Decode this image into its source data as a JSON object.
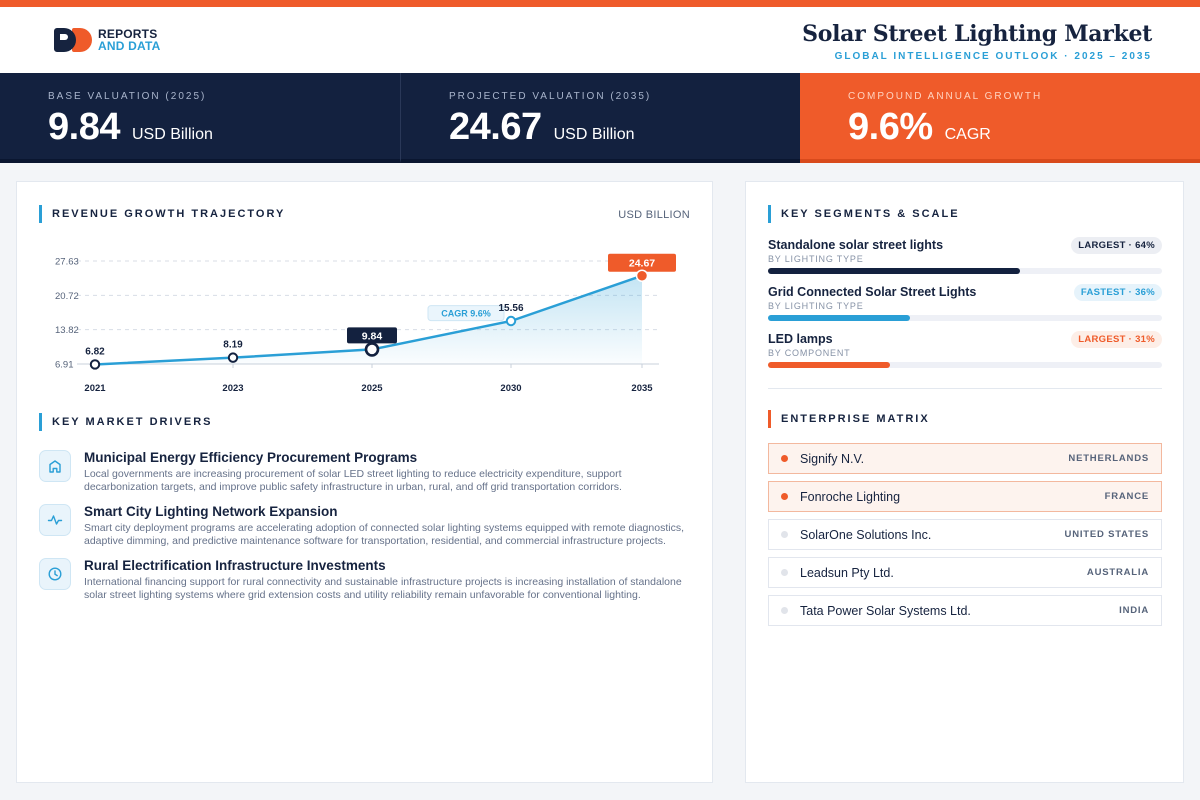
{
  "brand": {
    "line1": "REPORTS",
    "line2": "AND DATA"
  },
  "header": {
    "title": "Solar Street Lighting Market",
    "subtitle": "GLOBAL INTELLIGENCE OUTLOOK  ·  2025 – 2035"
  },
  "kpis": [
    {
      "label": "BASE VALUATION (2025)",
      "value": "9.84",
      "unit": "USD Billion"
    },
    {
      "label": "PROJECTED VALUATION (2035)",
      "value": "24.67",
      "unit": "USD Billion"
    },
    {
      "label": "COMPOUND ANNUAL GROWTH",
      "value": "9.6%",
      "unit": "CAGR"
    }
  ],
  "colors": {
    "navy": "#13213f",
    "orange": "#ef5b2a",
    "blue": "#2a9fd6"
  },
  "trajectory": {
    "title": "REVENUE GROWTH TRAJECTORY",
    "unit_label": "USD BILLION"
  },
  "chart_data": {
    "type": "area",
    "title": "REVENUE GROWTH TRAJECTORY",
    "ylabel": "USD BILLION",
    "categories": [
      "2021",
      "2023",
      "2025",
      "2030",
      "2035"
    ],
    "values": [
      6.82,
      8.19,
      9.84,
      15.56,
      24.67
    ],
    "value_labels": [
      "6.82",
      "8.19",
      "9.84",
      "15.56",
      "24.67"
    ],
    "y_ticks": [
      "27.63",
      "20.72",
      "13.82",
      "6.91"
    ],
    "ylim": [
      6.91,
      27.63
    ],
    "annotation": "CAGR 9.6%",
    "grid": true,
    "highlight": {
      "base_index": 2,
      "target_index": 4
    }
  },
  "drivers": {
    "title": "KEY MARKET DRIVERS",
    "items": [
      {
        "icon": "building-icon",
        "title": "Municipal Energy Efficiency Procurement Programs",
        "desc": "Local governments are increasing procurement of solar LED street lighting to reduce electricity expenditure, support decarbonization targets, and improve public safety infrastructure in urban, rural, and off grid transportation corridors."
      },
      {
        "icon": "pulse-icon",
        "title": "Smart City Lighting Network Expansion",
        "desc": "Smart city deployment programs are accelerating adoption of connected solar lighting systems equipped with remote diagnostics, adaptive dimming, and predictive maintenance software for transportation, residential, and commercial infrastructure projects."
      },
      {
        "icon": "clock-icon",
        "title": "Rural Electrification Infrastructure Investments",
        "desc": "International financing support for rural connectivity and sustainable infrastructure projects is increasing installation of standalone solar street lighting systems where grid extension costs and utility reliability remain unfavorable for conventional lighting."
      }
    ]
  },
  "segments": {
    "title": "KEY SEGMENTS & SCALE",
    "items": [
      {
        "name": "Standalone solar street lights",
        "category": "BY LIGHTING TYPE",
        "badge": "LARGEST · 64%",
        "share": 64,
        "color": "#13213f",
        "badge_bg": "#eceef3",
        "badge_fg": "#16233f"
      },
      {
        "name": "Grid Connected Solar Street Lights",
        "category": "BY LIGHTING TYPE",
        "badge": "FASTEST · 36%",
        "share": 36,
        "color": "#2a9fd6",
        "badge_bg": "#e6f3fb",
        "badge_fg": "#2a9fd6"
      },
      {
        "name": "LED lamps",
        "category": "BY COMPONENT",
        "badge": "LARGEST · 31%",
        "share": 31,
        "color": "#ef5b2a",
        "badge_bg": "#fdeee7",
        "badge_fg": "#ef5b2a"
      }
    ]
  },
  "matrix": {
    "title": "ENTERPRISE MATRIX",
    "items": [
      {
        "name": "Signify N.V.",
        "country": "NETHERLANDS",
        "highlight": true
      },
      {
        "name": "Fonroche Lighting",
        "country": "FRANCE",
        "highlight": true
      },
      {
        "name": "SolarOne Solutions Inc.",
        "country": "UNITED STATES",
        "highlight": false
      },
      {
        "name": "Leadsun Pty Ltd.",
        "country": "AUSTRALIA",
        "highlight": false
      },
      {
        "name": "Tata Power Solar Systems Ltd.",
        "country": "INDIA",
        "highlight": false
      }
    ]
  }
}
